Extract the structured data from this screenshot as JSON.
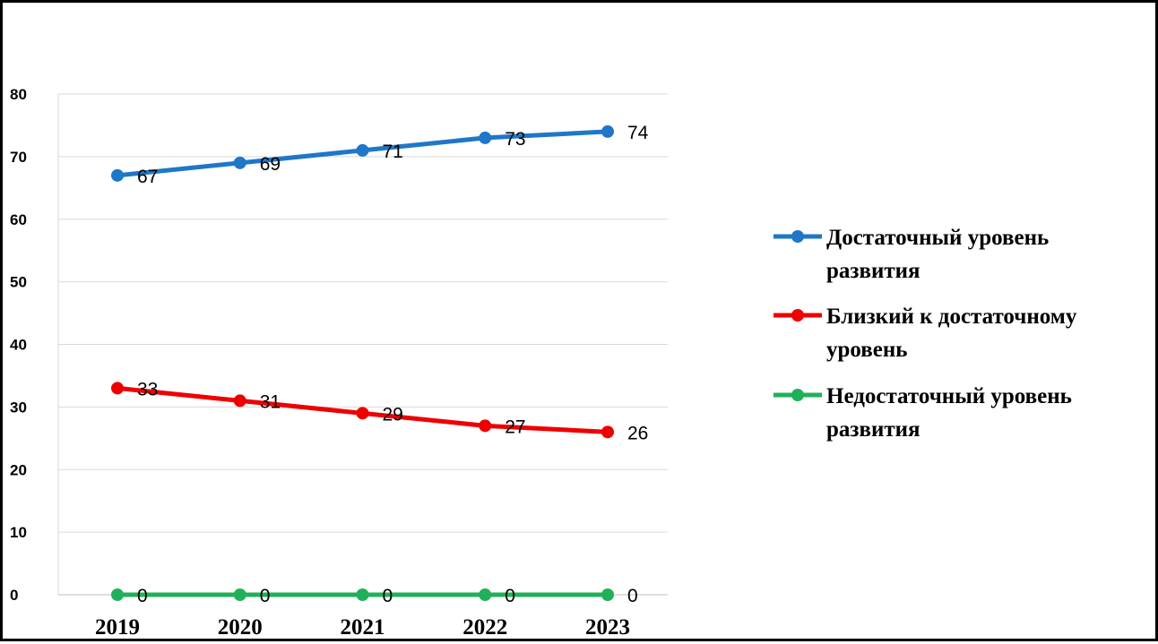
{
  "chart_data": {
    "type": "line",
    "categories": [
      "2019",
      "2020",
      "2021",
      "2022",
      "2023"
    ],
    "y_ticks": [
      "0",
      "10",
      "20",
      "30",
      "40",
      "50",
      "60",
      "70",
      "80"
    ],
    "ylim": [
      0,
      80
    ],
    "grid": true,
    "legend_position": "right",
    "series": [
      {
        "name": "Достаточный уровень развития",
        "legend_lines": [
          "Достаточный  уровень",
          "развития"
        ],
        "color": "#1f77c8",
        "values": [
          67,
          69,
          71,
          73,
          74
        ],
        "labels": [
          "67",
          "69",
          "71",
          "73",
          "74"
        ]
      },
      {
        "name": "Близкий к достаточному уровень",
        "legend_lines": [
          "Близкий к достаточному",
          "уровень"
        ],
        "color": "#ee0000",
        "values": [
          33,
          31,
          29,
          27,
          26
        ],
        "labels": [
          "33",
          "31",
          "29",
          "27",
          "26"
        ]
      },
      {
        "name": "Недостаточный уровень развития",
        "legend_lines": [
          "Недостаточный  уровень",
          "развития"
        ],
        "color": "#21b05a",
        "values": [
          0,
          0,
          0,
          0,
          0
        ],
        "labels": [
          "0",
          "0",
          "0",
          "0",
          "0"
        ]
      }
    ]
  }
}
